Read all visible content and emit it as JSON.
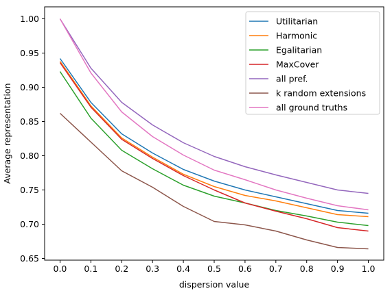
{
  "chart_data": {
    "type": "line",
    "xlabel": "dispersion value",
    "ylabel": "Average representation",
    "xlim": [
      -0.05,
      1.05
    ],
    "ylim": [
      0.6475,
      1.0175
    ],
    "x_ticks": [
      "0.0",
      "0.1",
      "0.2",
      "0.3",
      "0.4",
      "0.5",
      "0.6",
      "0.7",
      "0.8",
      "0.9",
      "1.0"
    ],
    "y_ticks": [
      "0.65",
      "0.70",
      "0.75",
      "0.80",
      "0.85",
      "0.90",
      "0.95",
      "1.00"
    ],
    "grid": false,
    "legend_position": "top-right",
    "x": [
      0.0,
      0.1,
      0.2,
      0.3,
      0.4,
      0.5,
      0.6,
      0.7,
      0.8,
      0.9,
      1.0
    ],
    "series": [
      {
        "name": "Utilitarian",
        "color": "#1f77b4",
        "values": [
          0.942,
          0.878,
          0.832,
          0.804,
          0.78,
          0.763,
          0.75,
          0.74,
          0.73,
          0.72,
          0.716
        ]
      },
      {
        "name": "Harmonic",
        "color": "#ff7f0e",
        "values": [
          0.938,
          0.873,
          0.826,
          0.798,
          0.773,
          0.755,
          0.742,
          0.734,
          0.724,
          0.714,
          0.711
        ]
      },
      {
        "name": "Egalitarian",
        "color": "#2ca02c",
        "values": [
          0.923,
          0.855,
          0.808,
          0.781,
          0.757,
          0.741,
          0.731,
          0.72,
          0.712,
          0.703,
          0.698
        ]
      },
      {
        "name": "MaxCover",
        "color": "#d62728",
        "values": [
          0.936,
          0.871,
          0.824,
          0.796,
          0.771,
          0.75,
          0.731,
          0.719,
          0.708,
          0.695,
          0.69
        ]
      },
      {
        "name": "all pref.",
        "color": "#9467bd",
        "values": [
          1.0,
          0.928,
          0.878,
          0.845,
          0.819,
          0.799,
          0.784,
          0.772,
          0.761,
          0.75,
          0.745
        ]
      },
      {
        "name": "k random extensions",
        "color": "#8c564b",
        "values": [
          0.862,
          0.82,
          0.778,
          0.754,
          0.726,
          0.704,
          0.699,
          0.69,
          0.677,
          0.666,
          0.664
        ]
      },
      {
        "name": "all ground truths",
        "color": "#e377c2",
        "values": [
          1.0,
          0.921,
          0.864,
          0.828,
          0.801,
          0.779,
          0.765,
          0.75,
          0.738,
          0.727,
          0.721
        ]
      }
    ]
  }
}
